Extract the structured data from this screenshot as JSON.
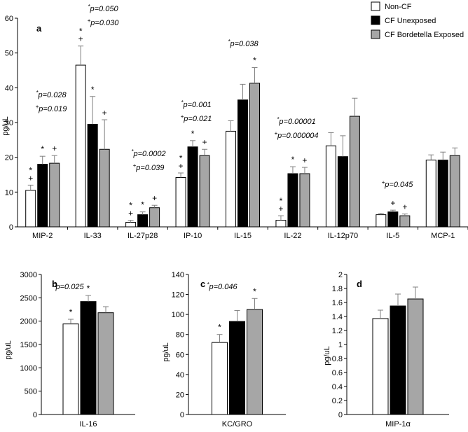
{
  "legend": [
    "Non-CF",
    "CF Unexposed",
    "CF Bordetella Exposed"
  ],
  "colors": {
    "Non-CF": "#ffffff",
    "CF Unexposed": "#000000",
    "CF Bordetella Exposed": "#a6a6a6",
    "edge": "#000000",
    "error": "#808080"
  },
  "chart_data": [
    {
      "panel": "a",
      "type": "bar",
      "ylabel": "pg/uL",
      "ylim": [
        0,
        60
      ],
      "yticks": [
        0,
        10,
        20,
        30,
        40,
        50,
        60
      ],
      "categories": [
        "MIP-2",
        "IL-33",
        "IL-27p28",
        "IP-10",
        "IL-15",
        "IL-22",
        "IL-12p70",
        "IL-5",
        "MCP-1"
      ],
      "series": [
        {
          "name": "Non-CF",
          "values": [
            10.5,
            46.5,
            1.3,
            14.2,
            27.5,
            1.9,
            23.3,
            3.5,
            19.2
          ],
          "errors": [
            1.5,
            5.5,
            0.6,
            1.3,
            3.0,
            1.3,
            3.8,
            0.4,
            1.5
          ]
        },
        {
          "name": "CF Unexposed",
          "values": [
            18.0,
            29.5,
            3.5,
            23.0,
            36.5,
            15.3,
            20.2,
            4.3,
            19.2
          ],
          "errors": [
            2.3,
            8.0,
            0.8,
            1.8,
            4.5,
            2.0,
            6.0,
            0.5,
            2.3
          ]
        },
        {
          "name": "CF Bordetella Exposed",
          "values": [
            18.3,
            22.3,
            5.5,
            20.5,
            41.3,
            15.3,
            31.8,
            3.2,
            20.5
          ],
          "errors": [
            2.2,
            8.5,
            0.7,
            1.8,
            4.5,
            1.8,
            5.2,
            0.5,
            2.2
          ]
        }
      ],
      "marks": [
        [
          "*+",
          "*",
          "+"
        ],
        [
          "*+",
          "*",
          "+"
        ],
        [
          "*+",
          "*",
          "+"
        ],
        [
          "*+",
          "*",
          "+"
        ],
        [
          "",
          "",
          "*"
        ],
        [
          "*+",
          "*",
          "+"
        ],
        [
          "",
          "",
          ""
        ],
        [
          "",
          "+",
          "+"
        ],
        [
          "",
          "",
          ""
        ]
      ],
      "annotations": [
        {
          "category": "MIP-2",
          "lines": [
            "*p=0.028",
            "+p=0.019"
          ]
        },
        {
          "category": "IL-33",
          "lines": [
            "*p=0.050",
            "+p=0.030"
          ]
        },
        {
          "category": "IL-27p28",
          "lines": [
            "*p=0.0002",
            "+p=0.039"
          ]
        },
        {
          "category": "IP-10",
          "lines": [
            "*p=0.001",
            "+p=0.021"
          ]
        },
        {
          "category": "IL-15",
          "lines": [
            "*p=0.038"
          ]
        },
        {
          "category": "IL-22",
          "lines": [
            "*p=0.00001",
            "+p=0.000004"
          ]
        },
        {
          "category": "IL-5",
          "lines": [
            "+p=0.045"
          ]
        }
      ]
    },
    {
      "panel": "b",
      "type": "bar",
      "ylabel": "pg/uL",
      "ylim": [
        0,
        3000
      ],
      "yticks": [
        0,
        500,
        1000,
        1500,
        2000,
        2500,
        3000
      ],
      "categories": [
        "IL-16"
      ],
      "series": [
        {
          "name": "Non-CF",
          "values": [
            1940
          ],
          "errors": [
            100
          ]
        },
        {
          "name": "CF Unexposed",
          "values": [
            2420
          ],
          "errors": [
            130
          ]
        },
        {
          "name": "CF Bordetella Exposed",
          "values": [
            2180
          ],
          "errors": [
            130
          ]
        }
      ],
      "marks": [
        [
          "*",
          "*",
          ""
        ]
      ],
      "annotations": [
        {
          "category": "IL-16",
          "lines": [
            "*p=0.025"
          ]
        }
      ]
    },
    {
      "panel": "c",
      "type": "bar",
      "ylabel": "pg/uL",
      "ylim": [
        0,
        140
      ],
      "yticks": [
        0,
        20,
        40,
        60,
        80,
        100,
        120,
        140
      ],
      "categories": [
        "KC/GRO"
      ],
      "series": [
        {
          "name": "Non-CF",
          "values": [
            72
          ],
          "errors": [
            8
          ]
        },
        {
          "name": "CF Unexposed",
          "values": [
            93
          ],
          "errors": [
            11
          ]
        },
        {
          "name": "CF Bordetella Exposed",
          "values": [
            105
          ],
          "errors": [
            11
          ]
        }
      ],
      "marks": [
        [
          "*",
          "",
          "*"
        ]
      ],
      "annotations": [
        {
          "category": "KC/GRO",
          "lines": [
            "*p=0.046"
          ]
        }
      ]
    },
    {
      "panel": "d",
      "type": "bar",
      "ylabel": "pg/uL",
      "ylim": [
        0,
        2
      ],
      "yticks": [
        0,
        0.2,
        0.4,
        0.6,
        0.8,
        1,
        1.2,
        1.4,
        1.6,
        1.8,
        2
      ],
      "categories": [
        "MIP-1α"
      ],
      "series": [
        {
          "name": "Non-CF",
          "values": [
            1.37
          ],
          "errors": [
            0.12
          ]
        },
        {
          "name": "CF Unexposed",
          "values": [
            1.55
          ],
          "errors": [
            0.17
          ]
        },
        {
          "name": "CF Bordetella Exposed",
          "values": [
            1.65
          ],
          "errors": [
            0.17
          ]
        }
      ],
      "marks": [
        [
          "",
          "",
          ""
        ]
      ],
      "annotations": []
    }
  ]
}
